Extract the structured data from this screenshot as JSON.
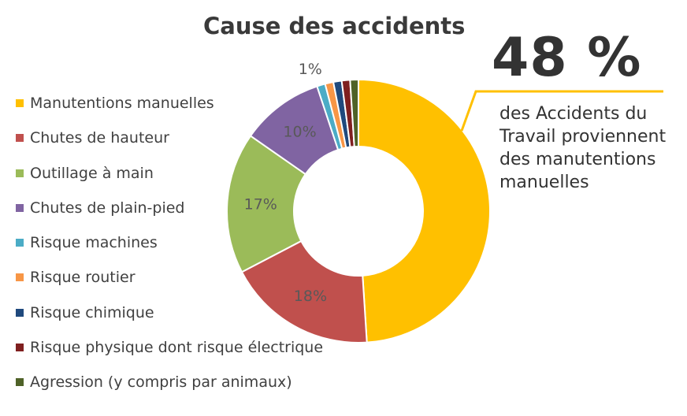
{
  "chart_data": {
    "type": "pie",
    "variant": "donut",
    "title": "Cause des accidents",
    "categories": [
      "Manutentions manuelles",
      "Chutes de hauteur",
      "Outillage à main",
      "Chutes de plain-pied",
      "Risque machines",
      "Risque routier",
      "Risque chimique",
      "Risque physique dont risque électrique",
      "Agression (y compris par animaux)"
    ],
    "values": [
      48,
      18,
      17,
      10,
      1,
      1,
      1,
      1,
      1
    ],
    "data_labels": [
      "",
      "18%",
      "17%",
      "10%",
      "1%",
      "",
      "",
      "",
      ""
    ],
    "colors": [
      "#FFC000",
      "#C0504D",
      "#9BBB59",
      "#8064A2",
      "#4BACC6",
      "#F79646",
      "#1F497D",
      "#7F1F1F",
      "#4F6228"
    ],
    "legend_position": "left"
  },
  "callout": {
    "value": "48 %",
    "text": "des Accidents du Travail proviennent des manutentions manuelles",
    "line_color": "#FFC000"
  }
}
